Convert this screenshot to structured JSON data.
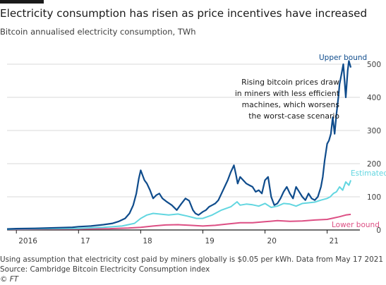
{
  "header": {
    "title": "Electricity consumption has risen as price incentives have increased",
    "subtitle": "Bitcoin annualised electricity consumption, TWh"
  },
  "footer": {
    "note": "Using assumption that electricity cost paid by miners globally is $0.05 per kWh. Data from May 17 2021",
    "source": "Source: Cambridge Bitcoin Electricity Consumption index",
    "copyright": "© FT"
  },
  "colors": {
    "upper": "#0f4c8c",
    "estimated": "#62d6e0",
    "lower": "#dd4f84",
    "grid": "#d9d9d9",
    "axis": "#1a1a1a"
  },
  "chart_data": {
    "type": "line",
    "title": "Electricity consumption has risen as price incentives have increased",
    "subtitle": "Bitcoin annualised electricity consumption, TWh",
    "xlabel": "",
    "ylabel": "",
    "ylim": [
      0,
      500
    ],
    "xlim": [
      2015.85,
      2021.47
    ],
    "yticks": [
      0,
      100,
      200,
      300,
      400,
      500
    ],
    "xticks": [
      {
        "value": 2016,
        "label": "2016"
      },
      {
        "value": 2017,
        "label": "17"
      },
      {
        "value": 2018,
        "label": "18"
      },
      {
        "value": 2019,
        "label": "19"
      },
      {
        "value": 2020,
        "label": "20"
      },
      {
        "value": 2021,
        "label": "21"
      }
    ],
    "grid": true,
    "annotation": [
      "Rising bitcoin prices draw",
      "in miners with less efficient",
      "machines, which worsens",
      "the worst-case scenario"
    ],
    "series": [
      {
        "name": "Upper bound",
        "x": [
          2015.85,
          2016.0,
          2016.3,
          2016.5,
          2016.7,
          2016.9,
          2017.0,
          2017.2,
          2017.4,
          2017.55,
          2017.65,
          2017.75,
          2017.82,
          2017.88,
          2017.93,
          2017.97,
          2018.0,
          2018.03,
          2018.06,
          2018.1,
          2018.15,
          2018.2,
          2018.25,
          2018.3,
          2018.35,
          2018.42,
          2018.5,
          2018.58,
          2018.65,
          2018.72,
          2018.78,
          2018.84,
          2018.88,
          2018.93,
          2019.0,
          2019.05,
          2019.1,
          2019.15,
          2019.2,
          2019.25,
          2019.3,
          2019.35,
          2019.4,
          2019.45,
          2019.5,
          2019.53,
          2019.56,
          2019.6,
          2019.65,
          2019.7,
          2019.75,
          2019.8,
          2019.85,
          2019.9,
          2019.95,
          2020.0,
          2020.05,
          2020.1,
          2020.15,
          2020.2,
          2020.25,
          2020.3,
          2020.35,
          2020.4,
          2020.45,
          2020.5,
          2020.55,
          2020.6,
          2020.65,
          2020.7,
          2020.75,
          2020.8,
          2020.85,
          2020.9,
          2020.93,
          2020.96,
          2021.0,
          2021.03,
          2021.06,
          2021.09,
          2021.12,
          2021.15,
          2021.18,
          2021.2,
          2021.23,
          2021.26,
          2021.28,
          2021.3,
          2021.33,
          2021.35,
          2021.38
        ],
        "values": [
          3,
          4,
          5,
          6,
          7,
          8,
          10,
          12,
          16,
          20,
          26,
          35,
          50,
          75,
          110,
          155,
          180,
          165,
          150,
          140,
          120,
          95,
          105,
          110,
          95,
          85,
          75,
          60,
          78,
          95,
          88,
          60,
          50,
          45,
          55,
          60,
          70,
          75,
          80,
          90,
          110,
          130,
          150,
          175,
          195,
          170,
          140,
          160,
          150,
          140,
          135,
          130,
          115,
          120,
          110,
          150,
          160,
          100,
          75,
          80,
          95,
          115,
          130,
          110,
          95,
          130,
          115,
          100,
          90,
          110,
          95,
          90,
          100,
          130,
          160,
          210,
          260,
          270,
          290,
          340,
          290,
          350,
          400,
          440,
          470,
          500,
          450,
          400,
          480,
          510,
          490
        ]
      },
      {
        "name": "Estimated",
        "x": [
          2015.85,
          2016.0,
          2016.5,
          2017.0,
          2017.4,
          2017.7,
          2017.9,
          2018.0,
          2018.1,
          2018.2,
          2018.3,
          2018.45,
          2018.6,
          2018.75,
          2018.9,
          2019.0,
          2019.15,
          2019.3,
          2019.45,
          2019.55,
          2019.6,
          2019.7,
          2019.8,
          2019.9,
          2020.0,
          2020.1,
          2020.2,
          2020.3,
          2020.4,
          2020.5,
          2020.6,
          2020.7,
          2020.8,
          2020.9,
          2021.0,
          2021.05,
          2021.1,
          2021.15,
          2021.2,
          2021.25,
          2021.3,
          2021.35,
          2021.38
        ],
        "values": [
          2,
          3,
          4,
          5,
          8,
          12,
          20,
          35,
          45,
          50,
          48,
          45,
          48,
          42,
          35,
          35,
          45,
          60,
          70,
          85,
          75,
          78,
          76,
          72,
          80,
          68,
          72,
          80,
          78,
          72,
          80,
          82,
          84,
          90,
          95,
          100,
          110,
          115,
          130,
          120,
          145,
          135,
          150
        ]
      },
      {
        "name": "Lower bound",
        "x": [
          2015.85,
          2016.0,
          2016.5,
          2017.0,
          2017.5,
          2017.8,
          2018.0,
          2018.2,
          2018.4,
          2018.6,
          2018.8,
          2019.0,
          2019.2,
          2019.4,
          2019.6,
          2019.8,
          2020.0,
          2020.2,
          2020.4,
          2020.6,
          2020.8,
          2021.0,
          2021.1,
          2021.2,
          2021.3,
          2021.38
        ],
        "values": [
          2,
          2,
          3,
          3,
          4,
          6,
          8,
          12,
          15,
          16,
          14,
          12,
          14,
          18,
          22,
          22,
          25,
          28,
          26,
          27,
          30,
          32,
          36,
          40,
          45,
          47
        ]
      }
    ]
  }
}
